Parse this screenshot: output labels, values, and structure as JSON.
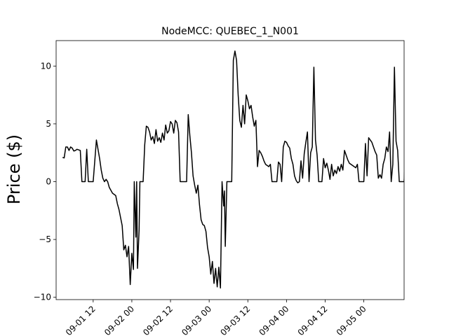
{
  "chart_data": {
    "type": "line",
    "title": "NodeMCC: QUEBEC_1_N001",
    "xlabel": "",
    "ylabel": "Price ($)",
    "ylim": [
      -10.2,
      12.2
    ],
    "xlim": [
      "2022-09-01 00:30",
      "2022-09-05 12:30"
    ],
    "yticks": [
      -10,
      -5,
      0,
      5,
      10
    ],
    "xticks": [
      {
        "x": "2022-09-01 12:00",
        "label": "09-01 12"
      },
      {
        "x": "2022-09-02 00:00",
        "label": "09-02 00"
      },
      {
        "x": "2022-09-02 12:00",
        "label": "09-02 12"
      },
      {
        "x": "2022-09-03 00:00",
        "label": "09-03 00"
      },
      {
        "x": "2022-09-03 12:00",
        "label": "09-03 12"
      },
      {
        "x": "2022-09-04 00:00",
        "label": "09-04 00"
      },
      {
        "x": "2022-09-04 12:00",
        "label": "09-04 12"
      },
      {
        "x": "2022-09-05 00:00",
        "label": "09-05 00"
      }
    ],
    "grid": false,
    "series": [
      {
        "name": "",
        "color": "#000000",
        "points": [
          [
            "2022-09-01 02:30",
            2.1
          ],
          [
            "2022-09-01 03:00",
            2.05
          ],
          [
            "2022-09-01 03:30",
            3.0
          ],
          [
            "2022-09-01 04:00",
            3.0
          ],
          [
            "2022-09-01 04:30",
            2.7
          ],
          [
            "2022-09-01 05:00",
            3.0
          ],
          [
            "2022-09-01 05:30",
            2.9
          ],
          [
            "2022-09-01 06:00",
            2.65
          ],
          [
            "2022-09-01 06:30",
            2.7
          ],
          [
            "2022-09-01 07:00",
            2.8
          ],
          [
            "2022-09-01 08:00",
            2.7
          ],
          [
            "2022-09-01 08:30",
            0.0
          ],
          [
            "2022-09-01 09:30",
            0.0
          ],
          [
            "2022-09-01 10:00",
            2.8
          ],
          [
            "2022-09-01 10:30",
            0.0
          ],
          [
            "2022-09-01 12:00",
            0.0
          ],
          [
            "2022-09-01 13:00",
            3.6
          ],
          [
            "2022-09-01 13:30",
            2.8
          ],
          [
            "2022-09-01 14:00",
            2.0
          ],
          [
            "2022-09-01 14:30",
            1.0
          ],
          [
            "2022-09-01 15:00",
            0.3
          ],
          [
            "2022-09-01 15:30",
            0.0
          ],
          [
            "2022-09-01 16:00",
            0.2
          ],
          [
            "2022-09-01 16:30",
            0.0
          ],
          [
            "2022-09-01 17:00",
            -0.5
          ],
          [
            "2022-09-01 18:00",
            -1.0
          ],
          [
            "2022-09-01 19:00",
            -1.2
          ],
          [
            "2022-09-01 19:30",
            -1.9
          ],
          [
            "2022-09-01 20:00",
            -2.4
          ],
          [
            "2022-09-01 20:30",
            -3.1
          ],
          [
            "2022-09-01 21:00",
            -3.8
          ],
          [
            "2022-09-01 21:30",
            -5.9
          ],
          [
            "2022-09-01 22:00",
            -5.5
          ],
          [
            "2022-09-01 22:30",
            -6.5
          ],
          [
            "2022-09-01 23:00",
            -5.6
          ],
          [
            "2022-09-01 23:30",
            -8.9
          ],
          [
            "2022-09-02 00:00",
            -6.2
          ],
          [
            "2022-09-02 00:30",
            -7.6
          ],
          [
            "2022-09-02 00:45",
            0.0
          ],
          [
            "2022-09-02 01:15",
            -4.8
          ],
          [
            "2022-09-02 01:30",
            0.0
          ],
          [
            "2022-09-02 01:45",
            -7.5
          ],
          [
            "2022-09-02 02:15",
            -4.2
          ],
          [
            "2022-09-02 02:30",
            0.0
          ],
          [
            "2022-09-02 03:30",
            0.0
          ],
          [
            "2022-09-02 04:00",
            3.2
          ],
          [
            "2022-09-02 04:30",
            4.8
          ],
          [
            "2022-09-02 05:00",
            4.7
          ],
          [
            "2022-09-02 05:30",
            4.3
          ],
          [
            "2022-09-02 06:00",
            3.6
          ],
          [
            "2022-09-02 06:30",
            3.9
          ],
          [
            "2022-09-02 07:00",
            3.3
          ],
          [
            "2022-09-02 07:30",
            4.5
          ],
          [
            "2022-09-02 08:00",
            3.5
          ],
          [
            "2022-09-02 08:30",
            3.8
          ],
          [
            "2022-09-02 09:00",
            3.4
          ],
          [
            "2022-09-02 09:30",
            4.2
          ],
          [
            "2022-09-02 10:00",
            3.6
          ],
          [
            "2022-09-02 10:30",
            4.9
          ],
          [
            "2022-09-02 11:00",
            4.2
          ],
          [
            "2022-09-02 11:30",
            4.4
          ],
          [
            "2022-09-02 12:00",
            5.2
          ],
          [
            "2022-09-02 12:30",
            5.0
          ],
          [
            "2022-09-02 13:00",
            4.2
          ],
          [
            "2022-09-02 13:30",
            5.3
          ],
          [
            "2022-09-02 14:00",
            5.1
          ],
          [
            "2022-09-02 14:30",
            4.3
          ],
          [
            "2022-09-02 15:00",
            0.0
          ],
          [
            "2022-09-02 17:00",
            0.0
          ],
          [
            "2022-09-02 17:30",
            5.8
          ],
          [
            "2022-09-02 18:00",
            4.0
          ],
          [
            "2022-09-02 18:30",
            2.5
          ],
          [
            "2022-09-02 19:00",
            0.5
          ],
          [
            "2022-09-02 19:30",
            -0.3
          ],
          [
            "2022-09-02 20:00",
            -1.0
          ],
          [
            "2022-09-02 20:30",
            -0.3
          ],
          [
            "2022-09-02 21:00",
            -2.0
          ],
          [
            "2022-09-02 21:30",
            -3.3
          ],
          [
            "2022-09-02 22:00",
            -3.7
          ],
          [
            "2022-09-02 22:30",
            -3.8
          ],
          [
            "2022-09-02 23:00",
            -4.3
          ],
          [
            "2022-09-02 23:30",
            -5.7
          ],
          [
            "2022-09-03 00:00",
            -6.5
          ],
          [
            "2022-09-03 00:30",
            -8.0
          ],
          [
            "2022-09-03 01:00",
            -6.9
          ],
          [
            "2022-09-03 01:30",
            -8.8
          ],
          [
            "2022-09-03 02:00",
            -7.5
          ],
          [
            "2022-09-03 02:30",
            -9.1
          ],
          [
            "2022-09-03 03:00",
            -7.4
          ],
          [
            "2022-09-03 03:30",
            -9.2
          ],
          [
            "2022-09-03 04:00",
            0.0
          ],
          [
            "2022-09-03 04:30",
            -2.1
          ],
          [
            "2022-09-03 04:45",
            -0.8
          ],
          [
            "2022-09-03 05:00",
            -5.6
          ],
          [
            "2022-09-03 05:30",
            0.0
          ],
          [
            "2022-09-03 07:00",
            0.0
          ],
          [
            "2022-09-03 07:30",
            10.5
          ],
          [
            "2022-09-03 08:00",
            11.3
          ],
          [
            "2022-09-03 08:30",
            10.5
          ],
          [
            "2022-09-03 09:00",
            7.5
          ],
          [
            "2022-09-03 09:30",
            5.3
          ],
          [
            "2022-09-03 10:00",
            4.7
          ],
          [
            "2022-09-03 10:30",
            6.6
          ],
          [
            "2022-09-03 11:00",
            5.0
          ],
          [
            "2022-09-03 11:30",
            7.5
          ],
          [
            "2022-09-03 12:00",
            7.0
          ],
          [
            "2022-09-03 12:30",
            6.3
          ],
          [
            "2022-09-03 13:00",
            6.6
          ],
          [
            "2022-09-03 13:30",
            5.6
          ],
          [
            "2022-09-03 14:00",
            4.8
          ],
          [
            "2022-09-03 14:30",
            5.3
          ],
          [
            "2022-09-03 15:00",
            1.3
          ],
          [
            "2022-09-03 15:30",
            2.7
          ],
          [
            "2022-09-03 16:00",
            2.5
          ],
          [
            "2022-09-03 16:30",
            2.2
          ],
          [
            "2022-09-03 17:00",
            1.8
          ],
          [
            "2022-09-03 17:30",
            1.5
          ],
          [
            "2022-09-03 18:00",
            1.4
          ],
          [
            "2022-09-03 18:30",
            1.3
          ],
          [
            "2022-09-03 19:00",
            1.5
          ],
          [
            "2022-09-03 19:30",
            0.0
          ],
          [
            "2022-09-03 21:00",
            0.0
          ],
          [
            "2022-09-03 21:30",
            1.7
          ],
          [
            "2022-09-03 22:00",
            1.5
          ],
          [
            "2022-09-03 22:30",
            0.0
          ],
          [
            "2022-09-03 23:00",
            3.0
          ],
          [
            "2022-09-03 23:30",
            3.5
          ],
          [
            "2022-09-04 00:00",
            3.4
          ],
          [
            "2022-09-04 00:30",
            3.1
          ],
          [
            "2022-09-04 01:00",
            2.9
          ],
          [
            "2022-09-04 01:30",
            2.0
          ],
          [
            "2022-09-04 02:00",
            1.5
          ],
          [
            "2022-09-04 02:30",
            0.5
          ],
          [
            "2022-09-04 03:00",
            0.1
          ],
          [
            "2022-09-04 03:30",
            -0.1
          ],
          [
            "2022-09-04 04:00",
            0.0
          ],
          [
            "2022-09-04 04:30",
            1.8
          ],
          [
            "2022-09-04 05:00",
            0.3
          ],
          [
            "2022-09-04 05:30",
            2.4
          ],
          [
            "2022-09-04 06:00",
            3.4
          ],
          [
            "2022-09-04 06:30",
            4.3
          ],
          [
            "2022-09-04 07:00",
            0.0
          ],
          [
            "2022-09-04 07:30",
            2.5
          ],
          [
            "2022-09-04 08:00",
            3.0
          ],
          [
            "2022-09-04 08:30",
            9.9
          ],
          [
            "2022-09-04 09:00",
            3.6
          ],
          [
            "2022-09-04 09:30",
            2.3
          ],
          [
            "2022-09-04 10:00",
            0.0
          ],
          [
            "2022-09-04 11:00",
            0.0
          ],
          [
            "2022-09-04 11:30",
            2.0
          ],
          [
            "2022-09-04 12:00",
            1.2
          ],
          [
            "2022-09-04 12:30",
            1.6
          ],
          [
            "2022-09-04 13:00",
            1.0
          ],
          [
            "2022-09-04 13:30",
            0.2
          ],
          [
            "2022-09-04 14:00",
            1.5
          ],
          [
            "2022-09-04 14:30",
            0.5
          ],
          [
            "2022-09-04 15:00",
            1.0
          ],
          [
            "2022-09-04 15:30",
            0.7
          ],
          [
            "2022-09-04 16:00",
            1.3
          ],
          [
            "2022-09-04 16:30",
            0.9
          ],
          [
            "2022-09-04 17:00",
            1.5
          ],
          [
            "2022-09-04 17:30",
            1.0
          ],
          [
            "2022-09-04 18:00",
            2.7
          ],
          [
            "2022-09-04 18:30",
            2.3
          ],
          [
            "2022-09-04 19:00",
            1.9
          ],
          [
            "2022-09-04 19:30",
            1.6
          ],
          [
            "2022-09-04 20:00",
            1.5
          ],
          [
            "2022-09-04 20:30",
            1.4
          ],
          [
            "2022-09-04 21:00",
            1.3
          ],
          [
            "2022-09-04 21:30",
            1.2
          ],
          [
            "2022-09-04 22:00",
            1.5
          ],
          [
            "2022-09-04 22:30",
            0.0
          ],
          [
            "2022-09-05 00:00",
            0.0
          ],
          [
            "2022-09-05 00:30",
            3.3
          ],
          [
            "2022-09-05 01:00",
            0.5
          ],
          [
            "2022-09-05 01:30",
            3.8
          ],
          [
            "2022-09-05 02:00",
            3.6
          ],
          [
            "2022-09-05 02:30",
            3.4
          ],
          [
            "2022-09-05 03:00",
            3.0
          ],
          [
            "2022-09-05 03:30",
            2.6
          ],
          [
            "2022-09-05 04:00",
            2.3
          ],
          [
            "2022-09-05 04:30",
            0.3
          ],
          [
            "2022-09-05 05:00",
            0.6
          ],
          [
            "2022-09-05 05:30",
            0.3
          ],
          [
            "2022-09-05 06:00",
            1.5
          ],
          [
            "2022-09-05 06:30",
            2.0
          ],
          [
            "2022-09-05 07:00",
            3.0
          ],
          [
            "2022-09-05 07:30",
            2.6
          ],
          [
            "2022-09-05 08:00",
            4.3
          ],
          [
            "2022-09-05 08:30",
            0.0
          ],
          [
            "2022-09-05 09:00",
            1.5
          ],
          [
            "2022-09-05 09:30",
            9.9
          ],
          [
            "2022-09-05 10:00",
            3.5
          ],
          [
            "2022-09-05 10:30",
            2.7
          ],
          [
            "2022-09-05 11:00",
            0.0
          ],
          [
            "2022-09-05 12:30",
            0.0
          ],
          [
            "2022-09-05 13:00",
            2.7
          ],
          [
            "2022-09-05 13:30",
            2.4
          ],
          [
            "2022-09-05 14:00",
            1.5
          ],
          [
            "2022-09-05 14:30",
            0.4
          ],
          [
            "2022-09-05 15:00",
            0.3
          ],
          [
            "2022-09-05 15:30",
            1.1
          ],
          [
            "2022-09-05 16:00",
            0.5
          ],
          [
            "2022-09-05 16:30",
            0.8
          ],
          [
            "2022-09-05 17:00",
            0.7
          ]
        ]
      }
    ]
  }
}
